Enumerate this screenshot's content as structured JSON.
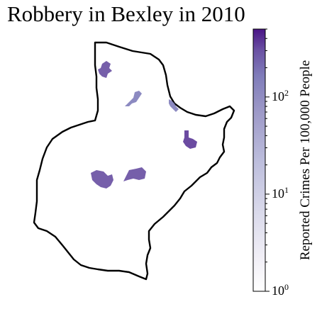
{
  "title": "Robbery in Bexley in 2010",
  "colorbar": {
    "label": "Reported Crimes Per 100,000 People",
    "scale": "log",
    "range": [
      1,
      500
    ],
    "colormap": "Purples",
    "color_low": "#ffffff",
    "color_high": "#3f007d",
    "ticks": [
      {
        "value": 1,
        "base": "10",
        "exp": "0"
      },
      {
        "value": 10,
        "base": "10",
        "exp": "1"
      },
      {
        "value": 100,
        "base": "10",
        "exp": "2"
      }
    ]
  },
  "map": {
    "boundary_color": "#000000",
    "area_fill": "#ffffff",
    "highlight_color": "#6a51a3"
  }
}
